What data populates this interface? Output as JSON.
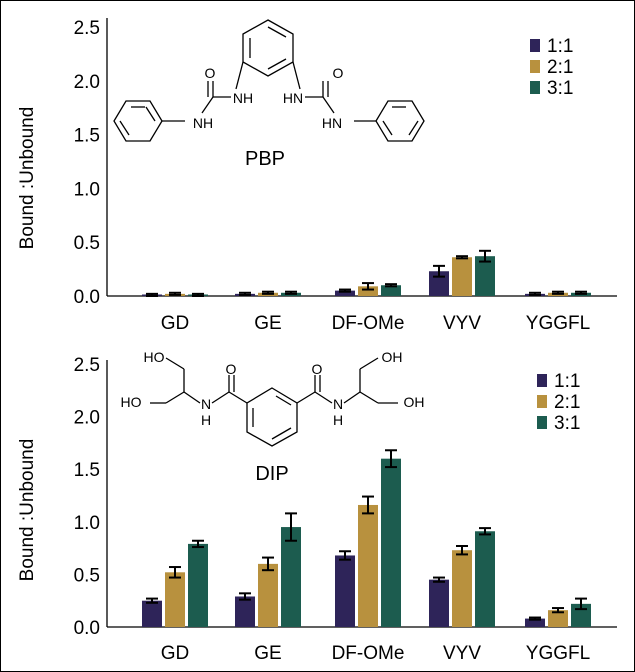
{
  "colors": {
    "s1": "#2e2459",
    "s2": "#b8913e",
    "s3": "#1c5c4f"
  },
  "chart_data": [
    {
      "type": "bar",
      "ylabel": "Bound :Unbound",
      "ylim": [
        0,
        2.5
      ],
      "yticks": [
        "0.0",
        "0.5",
        "1.0",
        "1.5",
        "2.0",
        "2.5"
      ],
      "categories": [
        "GD",
        "GE",
        "DF-OMe",
        "VYV",
        "YGGFL"
      ],
      "legend_position": "top-right",
      "series": [
        {
          "name": "1:1",
          "values": [
            0.01,
            0.02,
            0.05,
            0.23,
            0.02
          ],
          "errors": [
            0.01,
            0.01,
            0.01,
            0.05,
            0.01
          ]
        },
        {
          "name": "2:1",
          "values": [
            0.02,
            0.03,
            0.09,
            0.36,
            0.03
          ],
          "errors": [
            0.01,
            0.01,
            0.03,
            0.01,
            0.01
          ]
        },
        {
          "name": "3:1",
          "values": [
            0.01,
            0.03,
            0.1,
            0.37,
            0.03
          ],
          "errors": [
            0.01,
            0.01,
            0.01,
            0.05,
            0.01
          ]
        }
      ],
      "structure_label": "PBP",
      "atom_labels": [
        "O",
        "O",
        "NH",
        "HN",
        "NH",
        "HN"
      ]
    },
    {
      "type": "bar",
      "ylabel": "Bound :Unbound",
      "ylim": [
        0,
        2.5
      ],
      "yticks": [
        "0.0",
        "0.5",
        "1.0",
        "1.5",
        "2.0",
        "2.5"
      ],
      "categories": [
        "GD",
        "GE",
        "DF-OMe",
        "VYV",
        "YGGFL"
      ],
      "legend_position": "top-right",
      "series": [
        {
          "name": "1:1",
          "values": [
            0.25,
            0.29,
            0.68,
            0.45,
            0.08
          ],
          "errors": [
            0.02,
            0.03,
            0.04,
            0.02,
            0.01
          ]
        },
        {
          "name": "2:1",
          "values": [
            0.52,
            0.6,
            1.16,
            0.73,
            0.16
          ],
          "errors": [
            0.05,
            0.06,
            0.08,
            0.04,
            0.02
          ]
        },
        {
          "name": "3:1",
          "values": [
            0.79,
            0.95,
            1.6,
            0.91,
            0.22
          ],
          "errors": [
            0.03,
            0.13,
            0.08,
            0.03,
            0.05
          ]
        }
      ],
      "structure_label": "DIP",
      "atom_labels": [
        "HO",
        "OH",
        "HO",
        "OH",
        "O",
        "O",
        "N",
        "H",
        "N",
        "H"
      ]
    }
  ]
}
